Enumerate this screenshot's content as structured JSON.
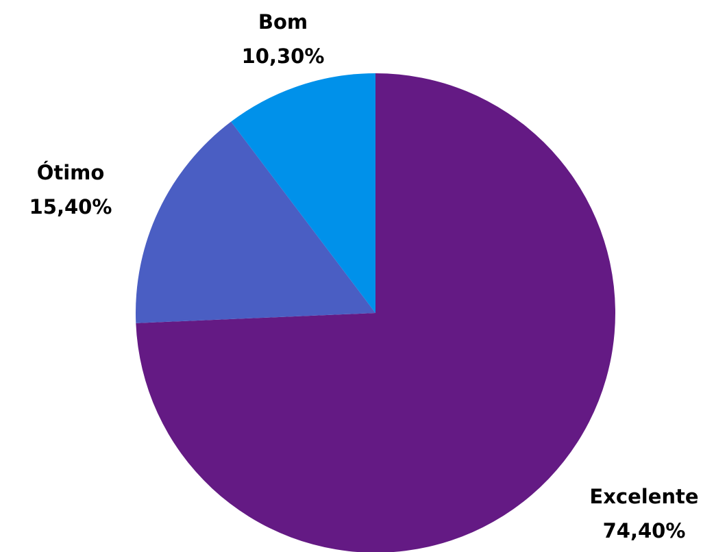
{
  "chart_data": {
    "type": "pie",
    "title": "",
    "start_angle_deg": 0,
    "direction": "clockwise",
    "slices": [
      {
        "label": "Excelente",
        "value": 74.4,
        "value_label": "74,40%",
        "color": "#641A84"
      },
      {
        "label": "Ótimo",
        "value": 15.4,
        "value_label": "15,40%",
        "color": "#4A5EC3"
      },
      {
        "label": "Bom",
        "value": 10.3,
        "value_label": "10,30%",
        "color": "#0091EA"
      }
    ]
  }
}
